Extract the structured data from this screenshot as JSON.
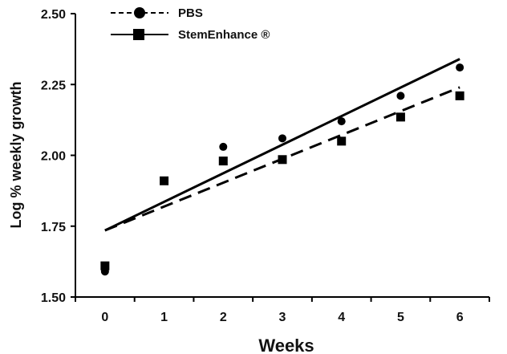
{
  "chart_data": {
    "type": "scatter",
    "xlabel": "Weeks",
    "ylabel": "Log % weekly growth",
    "xlim": [
      -0.5,
      6.5
    ],
    "ylim": [
      1.5,
      2.5
    ],
    "x_ticks": [
      0,
      1,
      2,
      3,
      4,
      5,
      6
    ],
    "y_ticks": [
      1.5,
      1.75,
      2.0,
      2.25,
      2.5
    ],
    "y_tick_labels": [
      "1.50",
      "1.75",
      "2.00",
      "2.25",
      "2.50"
    ],
    "grid": false,
    "legend_position": "top-left",
    "series": [
      {
        "name": "PBS",
        "marker": "circle",
        "line_style": "dashed",
        "color": "#000000",
        "x": [
          0,
          1,
          2,
          3,
          4,
          5,
          6
        ],
        "y": [
          1.59,
          1.91,
          2.03,
          2.06,
          2.12,
          2.21,
          2.31
        ],
        "trendline": {
          "x": [
            0,
            6
          ],
          "y": [
            1.735,
            2.24
          ]
        }
      },
      {
        "name": "StemEnhance ®",
        "marker": "square",
        "line_style": "solid",
        "color": "#000000",
        "x": [
          0,
          1,
          2,
          3,
          4,
          5,
          6
        ],
        "y": [
          1.61,
          1.91,
          1.98,
          1.985,
          2.05,
          2.135,
          2.21
        ],
        "trendline": {
          "x": [
            0,
            6
          ],
          "y": [
            1.735,
            2.34
          ]
        }
      }
    ]
  }
}
